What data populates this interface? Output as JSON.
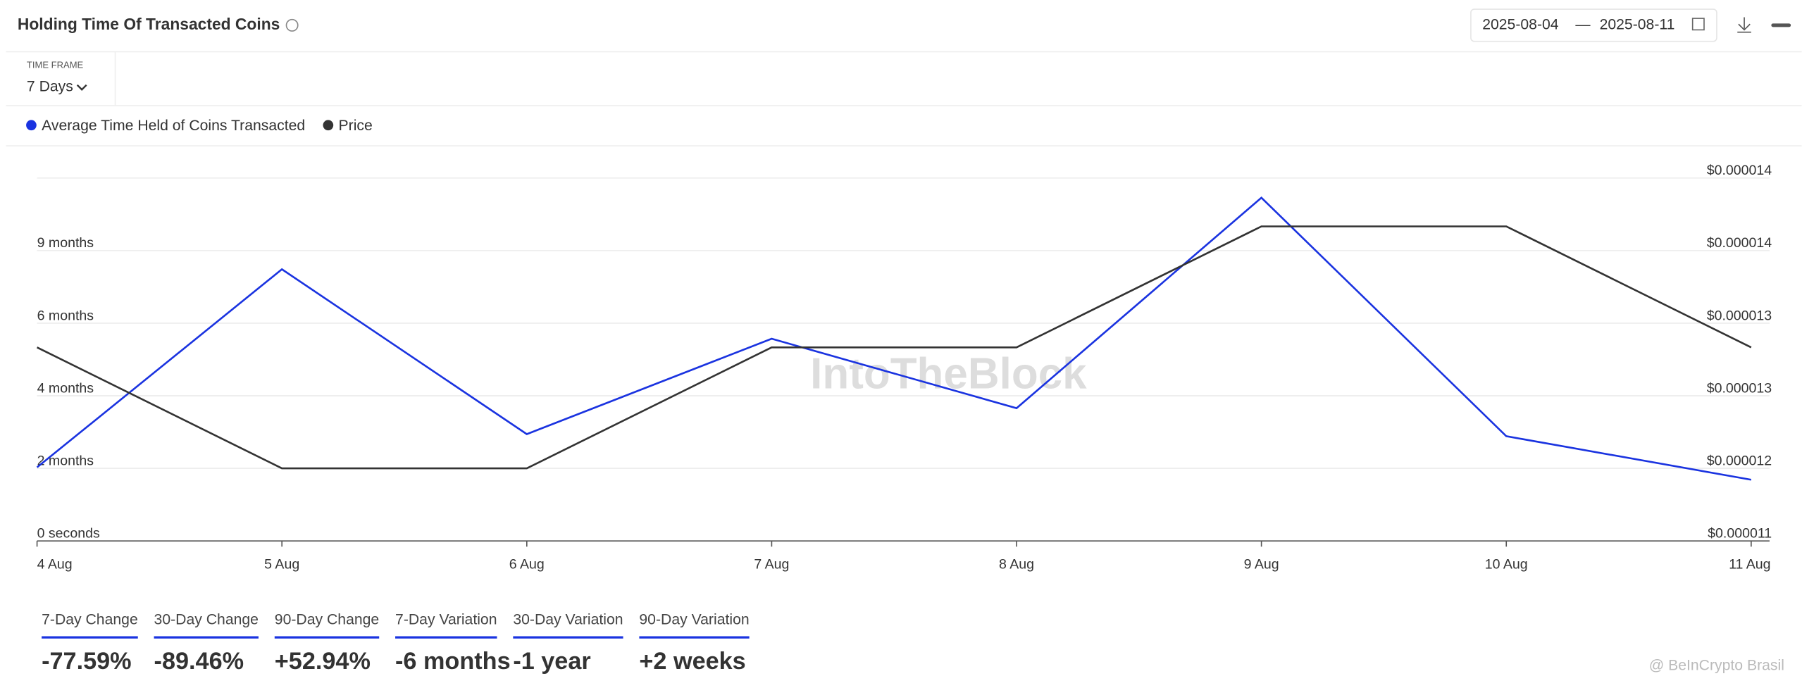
{
  "header": {
    "title": "Holding Time Of Transacted Coins",
    "date_start": "2025-08-04",
    "date_sep": "—",
    "date_end": "2025-08-11"
  },
  "filter": {
    "label": "TIME FRAME",
    "value": "7 Days"
  },
  "watermark": "IntoTheBlock",
  "credit": "@ BeInCrypto Brasil",
  "chart_data": {
    "type": "line",
    "categories": [
      "4 Aug",
      "5 Aug",
      "6 Aug",
      "7 Aug",
      "8 Aug",
      "9 Aug",
      "10 Aug",
      "11 Aug"
    ],
    "series": [
      {
        "name": "Average Time Held of Coins Transacted",
        "color": "#1a33e0",
        "values": [
          71,
          262,
          103,
          195,
          128,
          331,
          101,
          59
        ]
      },
      {
        "name": "Price",
        "color": "#333333",
        "axis": "y2",
        "values": [
          1.3e-05,
          1.2e-05,
          1.2e-05,
          1.3e-05,
          1.3e-05,
          1.4e-05,
          1.4e-05,
          1.3e-05
        ]
      }
    ],
    "ylim": [
      0,
      350
    ],
    "yticks": [
      {
        "value": 0,
        "label": "0 seconds"
      },
      {
        "value": 70,
        "label": "2 months"
      },
      {
        "value": 140,
        "label": "4 months"
      },
      {
        "value": 210,
        "label": "6 months"
      },
      {
        "value": 280,
        "label": "9 months"
      }
    ],
    "y2lim": [
      1.14e-05,
      1.44e-05
    ],
    "y2ticks": [
      {
        "value": 1.14e-05,
        "label": "$0.000011"
      },
      {
        "value": 1.2e-05,
        "label": "$0.000012"
      },
      {
        "value": 1.26e-05,
        "label": "$0.000013"
      },
      {
        "value": 1.32e-05,
        "label": "$0.000013"
      },
      {
        "value": 1.38e-05,
        "label": "$0.000014"
      },
      {
        "value": 1.44e-05,
        "label": "$0.000014"
      }
    ],
    "grid": true
  },
  "stats": [
    {
      "label": "7-Day Change",
      "value": "-77.59%"
    },
    {
      "label": "30-Day Change",
      "value": "-89.46%"
    },
    {
      "label": "90-Day Change",
      "value": "+52.94%"
    },
    {
      "label": "7-Day Variation",
      "value": "-6 months"
    },
    {
      "label": "30-Day Variation",
      "value": "-1 year"
    },
    {
      "label": "90-Day Variation",
      "value": "+2 weeks"
    }
  ]
}
